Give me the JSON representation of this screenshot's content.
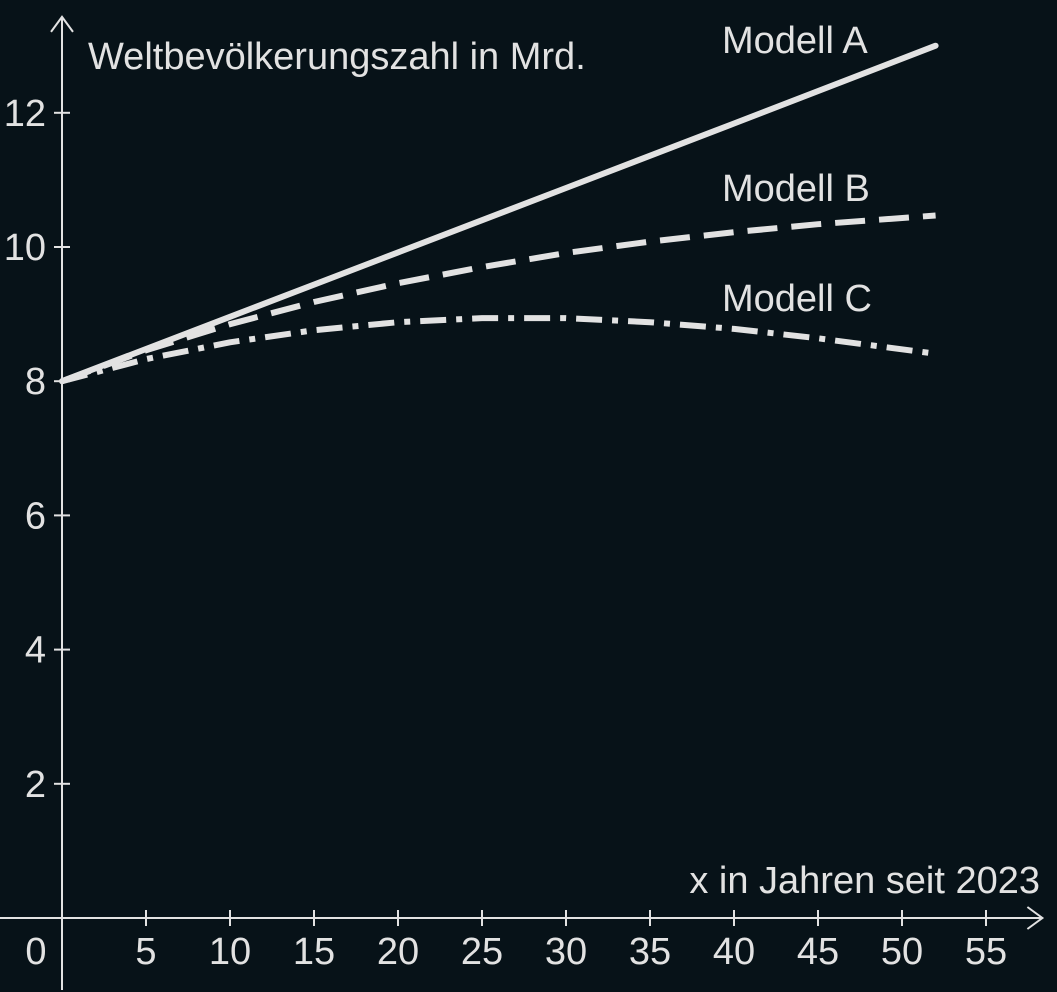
{
  "chart_data": {
    "type": "line",
    "ylabel": "Weltbevölkerungszahl in Mrd.",
    "xlabel": "x in Jahren seit 2023",
    "origin_label": "0",
    "xlim": [
      0,
      58
    ],
    "ylim": [
      0,
      13.4
    ],
    "xticks": [
      5,
      10,
      15,
      20,
      25,
      30,
      35,
      40,
      45,
      50,
      55
    ],
    "yticks": [
      2,
      4,
      6,
      8,
      10,
      12
    ],
    "grid": false,
    "legend": "none",
    "colors": {
      "background": "#071218",
      "axis": "#e2e2e2",
      "line": "#e2e2e2"
    },
    "series": [
      {
        "name": "Modell A",
        "style": "solid",
        "x": [
          0,
          10,
          20,
          30,
          40,
          52
        ],
        "y": [
          8.0,
          8.96,
          9.92,
          10.88,
          11.84,
          13.0
        ]
      },
      {
        "name": "Modell B",
        "style": "dashed",
        "x": [
          0,
          5,
          10,
          15,
          20,
          25,
          30,
          35,
          40,
          45,
          52
        ],
        "y": [
          8.0,
          8.46,
          8.85,
          9.18,
          9.46,
          9.7,
          9.91,
          10.08,
          10.22,
          10.34,
          10.47
        ]
      },
      {
        "name": "Modell C",
        "style": "dashdot",
        "x": [
          0,
          5,
          10,
          15,
          20,
          25,
          30,
          35,
          40,
          45,
          52
        ],
        "y": [
          8.0,
          8.33,
          8.58,
          8.76,
          8.88,
          8.94,
          8.94,
          8.88,
          8.78,
          8.64,
          8.41
        ]
      }
    ]
  }
}
